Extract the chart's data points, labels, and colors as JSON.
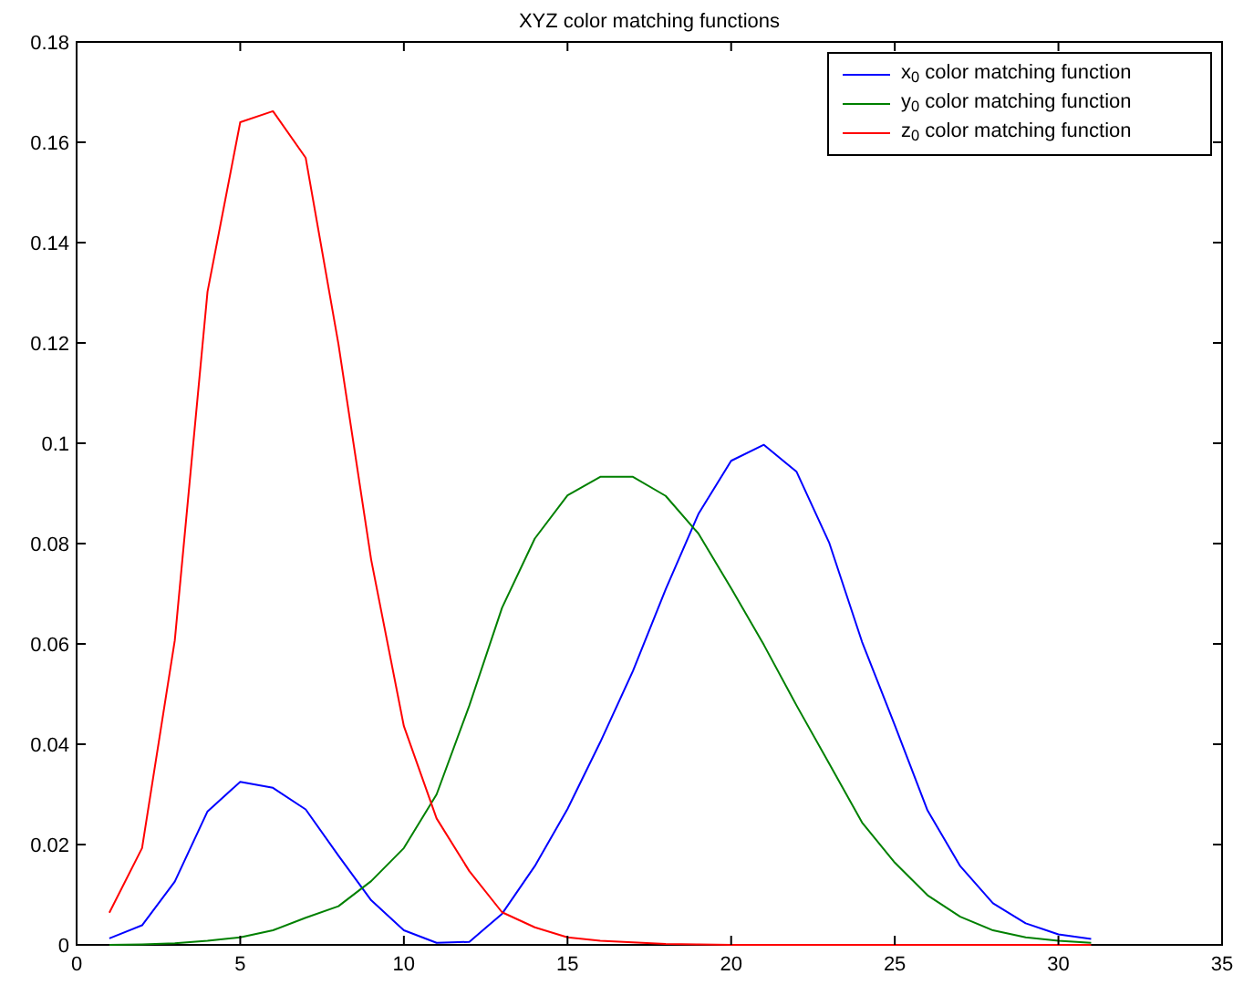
{
  "chart_data": {
    "type": "line",
    "title": "XYZ color matching functions",
    "x": [
      1,
      2,
      3,
      4,
      5,
      6,
      7,
      8,
      9,
      10,
      11,
      12,
      13,
      14,
      15,
      16,
      17,
      18,
      19,
      20,
      21,
      22,
      23,
      24,
      25,
      26,
      27,
      28,
      29,
      30,
      31
    ],
    "series": [
      {
        "name": "x$_{0}$ color matching function",
        "color": "#0000ff",
        "values": [
          0.0013,
          0.0039,
          0.0126,
          0.0266,
          0.0325,
          0.0313,
          0.027,
          0.0178,
          0.0089,
          0.0029,
          0.0004,
          0.0006,
          0.0062,
          0.0157,
          0.0271,
          0.0404,
          0.0546,
          0.0709,
          0.0859,
          0.0965,
          0.0997,
          0.0943,
          0.0801,
          0.0604,
          0.0438,
          0.0268,
          0.0157,
          0.0083,
          0.0043,
          0.0021,
          0.0012
        ]
      },
      {
        "name": "y$_{0}$ color matching function",
        "color": "#008000",
        "values": [
          0,
          0.0001,
          0.0003,
          0.0008,
          0.0015,
          0.0029,
          0.0054,
          0.0077,
          0.0127,
          0.0193,
          0.03,
          0.0477,
          0.0672,
          0.081,
          0.0896,
          0.0933,
          0.0933,
          0.0895,
          0.082,
          0.0711,
          0.0598,
          0.0477,
          0.0361,
          0.0244,
          0.0164,
          0.0099,
          0.0056,
          0.0029,
          0.0015,
          0.0008,
          0.0004
        ]
      },
      {
        "name": "z$_{0}$ color matching function",
        "color": "#ff0000",
        "values": [
          0.0064,
          0.0193,
          0.0607,
          0.1302,
          0.164,
          0.1662,
          0.1569,
          0.1198,
          0.0768,
          0.0436,
          0.0252,
          0.0147,
          0.0065,
          0.0035,
          0.0015,
          0.0008,
          0.0005,
          0.0002,
          0.0001,
          0,
          0,
          0,
          0,
          0,
          0,
          0,
          0,
          0,
          0,
          0,
          0
        ]
      }
    ],
    "xlim": [
      0,
      35
    ],
    "xticks": [
      0,
      5,
      10,
      15,
      20,
      25,
      30,
      35
    ],
    "ylim": [
      0,
      0.18
    ],
    "yticks": [
      0,
      0.02,
      0.04,
      0.06,
      0.08,
      0.1,
      0.12,
      0.14,
      0.16,
      0.18
    ],
    "legend": "top right",
    "grid": false,
    "marker": "none",
    "line_style": "solid"
  }
}
